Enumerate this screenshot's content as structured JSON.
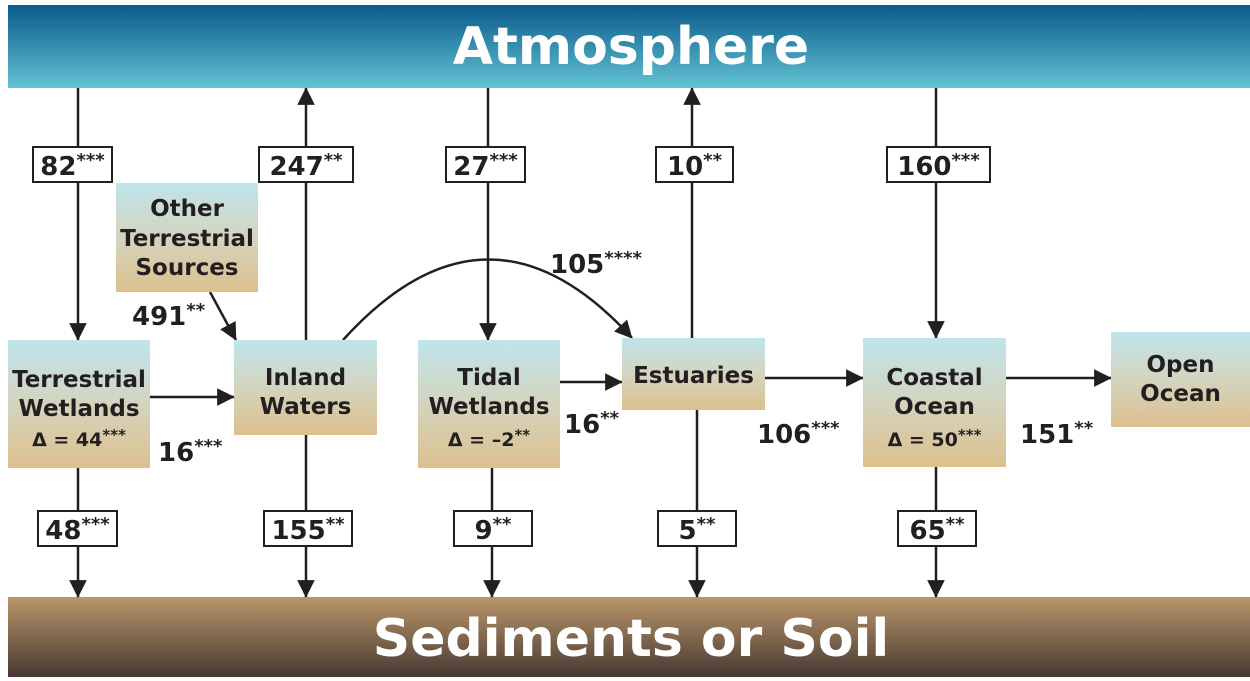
{
  "bands": {
    "top": "Atmosphere",
    "bottom": "Sediments or Soil"
  },
  "nodes": [
    {
      "lines": [
        "Other",
        "Terrestrial",
        "Sources"
      ]
    },
    {
      "lines": [
        "Terrestrial",
        "Wetlands"
      ],
      "delta": "Δ = 44",
      "stars": "***"
    },
    {
      "lines": [
        "Inland",
        "Waters"
      ]
    },
    {
      "lines": [
        "Tidal",
        "Wetlands"
      ],
      "delta": "Δ = –2",
      "stars": "**"
    },
    {
      "lines": [
        "Estuaries"
      ]
    },
    {
      "lines": [
        "Coastal",
        "Ocean"
      ],
      "delta": "Δ = 50",
      "stars": "***"
    },
    {
      "lines": [
        "Open",
        "Ocean"
      ]
    }
  ],
  "fluxes": [
    {
      "value": "82",
      "stars": "***"
    },
    {
      "value": "247",
      "stars": "**"
    },
    {
      "value": "27",
      "stars": "***"
    },
    {
      "value": "10",
      "stars": "**"
    },
    {
      "value": "160",
      "stars": "***"
    },
    {
      "value": "48",
      "stars": "***"
    },
    {
      "value": "155",
      "stars": "**"
    },
    {
      "value": "9",
      "stars": "**"
    },
    {
      "value": "5",
      "stars": "**"
    },
    {
      "value": "65",
      "stars": "**"
    },
    {
      "value": "491",
      "stars": "**"
    },
    {
      "value": "16",
      "stars": "***"
    },
    {
      "value": "105",
      "stars": "****"
    },
    {
      "value": "16",
      "stars": "**"
    },
    {
      "value": "106",
      "stars": "***"
    },
    {
      "value": "151",
      "stars": "**"
    }
  ]
}
